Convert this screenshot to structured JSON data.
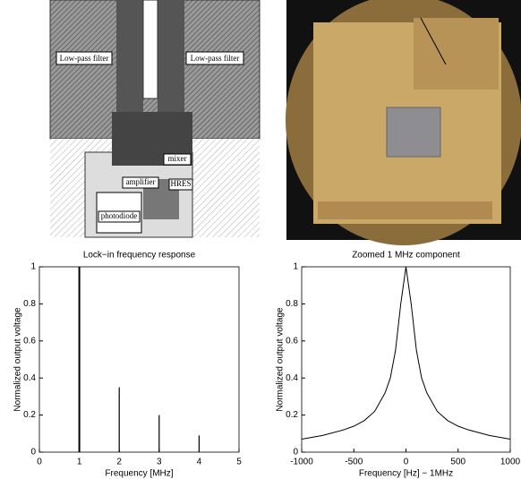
{
  "layout_labels": [
    "Low-pass filter",
    "Low-pass filter",
    "mixer",
    "amplifier",
    "HRES",
    "photodiode"
  ],
  "chart_data": [
    {
      "type": "stem",
      "title": "Lock−in frequency response",
      "xlabel": "Frequency [MHz]",
      "ylabel": "Normalized output voltage",
      "x": [
        1,
        2,
        3,
        4
      ],
      "values": [
        1,
        0.35,
        0.2,
        0.09
      ],
      "color": "#000000",
      "xlim": [
        0,
        5
      ],
      "xticks": [
        0,
        1,
        2,
        3,
        4,
        5
      ],
      "ylim": [
        0,
        1
      ],
      "yticks": [
        0,
        0.2,
        0.4,
        0.6,
        0.8,
        1
      ]
    },
    {
      "type": "line",
      "title": "Zoomed 1 MHz component",
      "xlabel": "Frequency [Hz] − 1MHz",
      "ylabel": "Normalized output voltage",
      "x": [
        -1000,
        -800,
        -600,
        -500,
        -400,
        -300,
        -200,
        -150,
        -100,
        -50,
        0,
        50,
        100,
        150,
        200,
        300,
        400,
        500,
        600,
        800,
        1000
      ],
      "values": [
        0.07,
        0.09,
        0.12,
        0.14,
        0.17,
        0.22,
        0.32,
        0.4,
        0.55,
        0.8,
        1,
        0.8,
        0.55,
        0.4,
        0.32,
        0.22,
        0.17,
        0.14,
        0.12,
        0.09,
        0.07
      ],
      "color": "#000000",
      "xlim": [
        -1000,
        1000
      ],
      "xticks": [
        -1000,
        -500,
        0,
        500,
        1000
      ],
      "ylim": [
        0,
        1
      ],
      "yticks": [
        0,
        0.2,
        0.4,
        0.6,
        0.8,
        1
      ]
    }
  ]
}
